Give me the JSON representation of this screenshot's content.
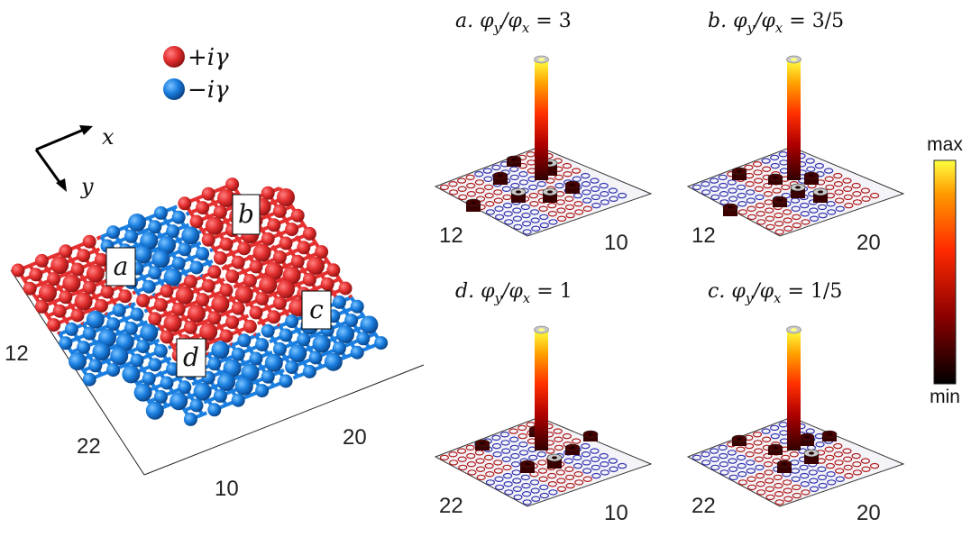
{
  "legend": [
    {
      "label": "+iγ",
      "color": "#e53030"
    },
    {
      "label": "−iγ",
      "color": "#1a7fe0"
    }
  ],
  "axes_arrows": {
    "x": "x",
    "y": "y"
  },
  "lattice": {
    "region_labels": [
      "a",
      "b",
      "c",
      "d"
    ],
    "ticks": [
      "12",
      "22",
      "10",
      "20"
    ],
    "colors": {
      "gain": "#e53030",
      "loss": "#1a7fe0"
    }
  },
  "panels": [
    {
      "letter": "a.",
      "sym": "φ",
      "sub_num": "y",
      "sub_den": "x",
      "eq": "=",
      "value": "3",
      "ticks": [
        "12",
        "10"
      ]
    },
    {
      "letter": "b.",
      "sym": "φ",
      "sub_num": "y",
      "sub_den": "x",
      "eq": "=",
      "value": "3/5",
      "ticks": [
        "12",
        "20"
      ]
    },
    {
      "letter": "d.",
      "sym": "φ",
      "sub_num": "y",
      "sub_den": "x",
      "eq": "=",
      "value": "1",
      "ticks": [
        "22",
        "10"
      ]
    },
    {
      "letter": "c.",
      "sym": "φ",
      "sub_num": "y",
      "sub_den": "x",
      "eq": "=",
      "value": "1/5",
      "ticks": [
        "22",
        "20"
      ]
    }
  ],
  "colorbar": {
    "max_label": "max",
    "min_label": "min",
    "colormap": [
      "#000000",
      "#8b0000",
      "#ff2a00",
      "#ff9a00",
      "#ffff40"
    ]
  }
}
